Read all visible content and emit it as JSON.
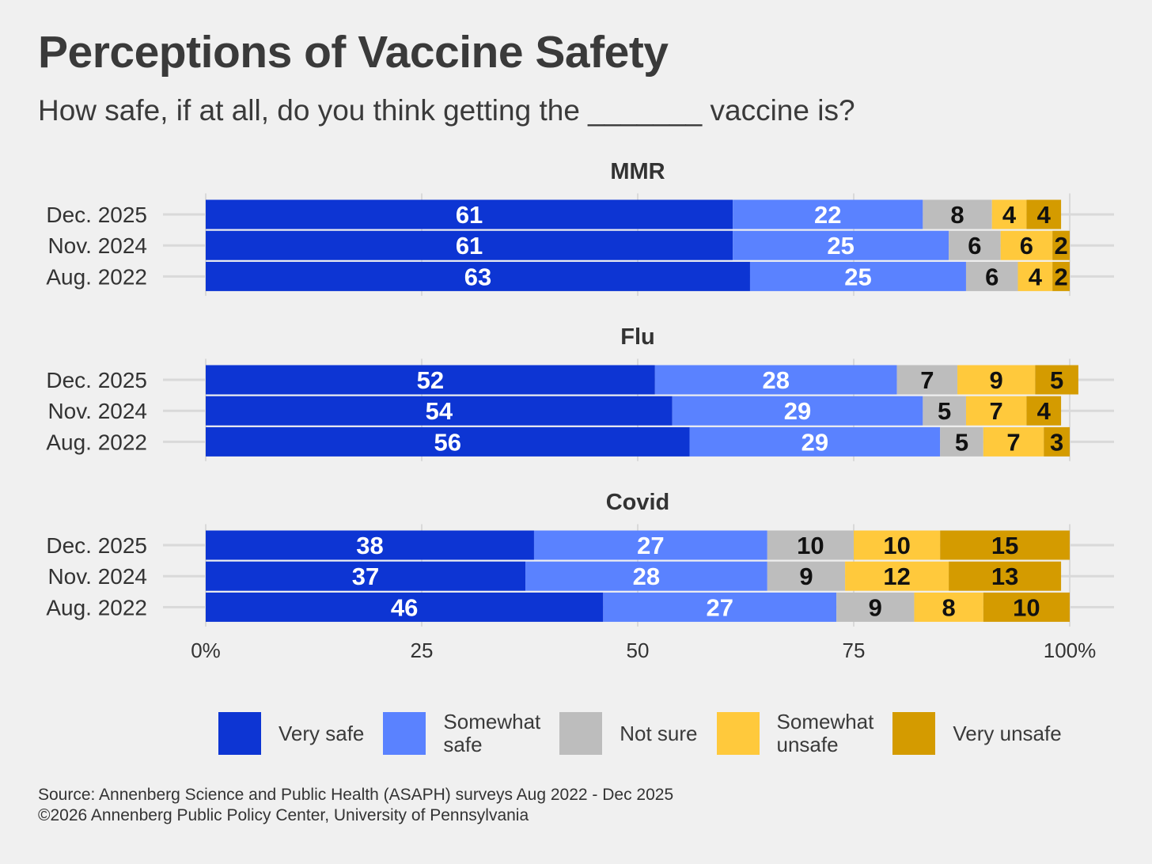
{
  "title": "Perceptions of Vaccine Safety",
  "subtitle": "How safe, if at all, do you think getting the _______ vaccine is?",
  "source_lines": [
    "Source: Annenberg Science and Public Health (ASAPH) surveys Aug 2022 - Dec 2025",
    "©2026 Annenberg Public Policy Center, University of Pennsylvania"
  ],
  "colors": {
    "Very safe": "#0d35d3",
    "Somewhat safe": "#5a82ff",
    "Not sure": "#bdbdbd",
    "Somewhat unsafe": "#ffc93c",
    "Very unsafe": "#d49b00",
    "gridline": "#d9d9d9",
    "background": "#f0f0f0"
  },
  "chart_data": {
    "type": "bar",
    "orientation": "horizontal",
    "stacked": true,
    "xlim": [
      0,
      100
    ],
    "x_ticks": [
      "0%",
      "25",
      "50",
      "75",
      "100%"
    ],
    "grid": true,
    "legend_position": "bottom",
    "legend": [
      {
        "key": "Very safe",
        "label_lines": [
          "Very safe"
        ]
      },
      {
        "key": "Somewhat safe",
        "label_lines": [
          "Somewhat",
          "safe"
        ]
      },
      {
        "key": "Not sure",
        "label_lines": [
          "Not sure"
        ]
      },
      {
        "key": "Somewhat unsafe",
        "label_lines": [
          "Somewhat",
          "unsafe"
        ]
      },
      {
        "key": "Very unsafe",
        "label_lines": [
          "Very unsafe"
        ]
      }
    ],
    "panels": [
      {
        "title": "MMR",
        "rows": [
          {
            "label": "Dec. 2025",
            "values": [
              61,
              22,
              8,
              4,
              4
            ]
          },
          {
            "label": "Nov. 2024",
            "values": [
              61,
              25,
              6,
              6,
              2
            ]
          },
          {
            "label": "Aug. 2022",
            "values": [
              63,
              25,
              6,
              4,
              2
            ]
          }
        ]
      },
      {
        "title": "Flu",
        "rows": [
          {
            "label": "Dec. 2025",
            "values": [
              52,
              28,
              7,
              9,
              5
            ]
          },
          {
            "label": "Nov. 2024",
            "values": [
              54,
              29,
              5,
              7,
              4
            ]
          },
          {
            "label": "Aug. 2022",
            "values": [
              56,
              29,
              5,
              7,
              3
            ]
          }
        ]
      },
      {
        "title": "Covid",
        "rows": [
          {
            "label": "Dec. 2025",
            "values": [
              38,
              27,
              10,
              10,
              15
            ]
          },
          {
            "label": "Nov. 2024",
            "values": [
              37,
              28,
              9,
              12,
              13
            ]
          },
          {
            "label": "Aug. 2022",
            "values": [
              46,
              27,
              9,
              8,
              10
            ]
          }
        ]
      }
    ],
    "series_order": [
      "Very safe",
      "Somewhat safe",
      "Not sure",
      "Somewhat unsafe",
      "Very unsafe"
    ],
    "label_colors": [
      "#ffffff",
      "#ffffff",
      "#111111",
      "#111111",
      "#111111"
    ]
  }
}
